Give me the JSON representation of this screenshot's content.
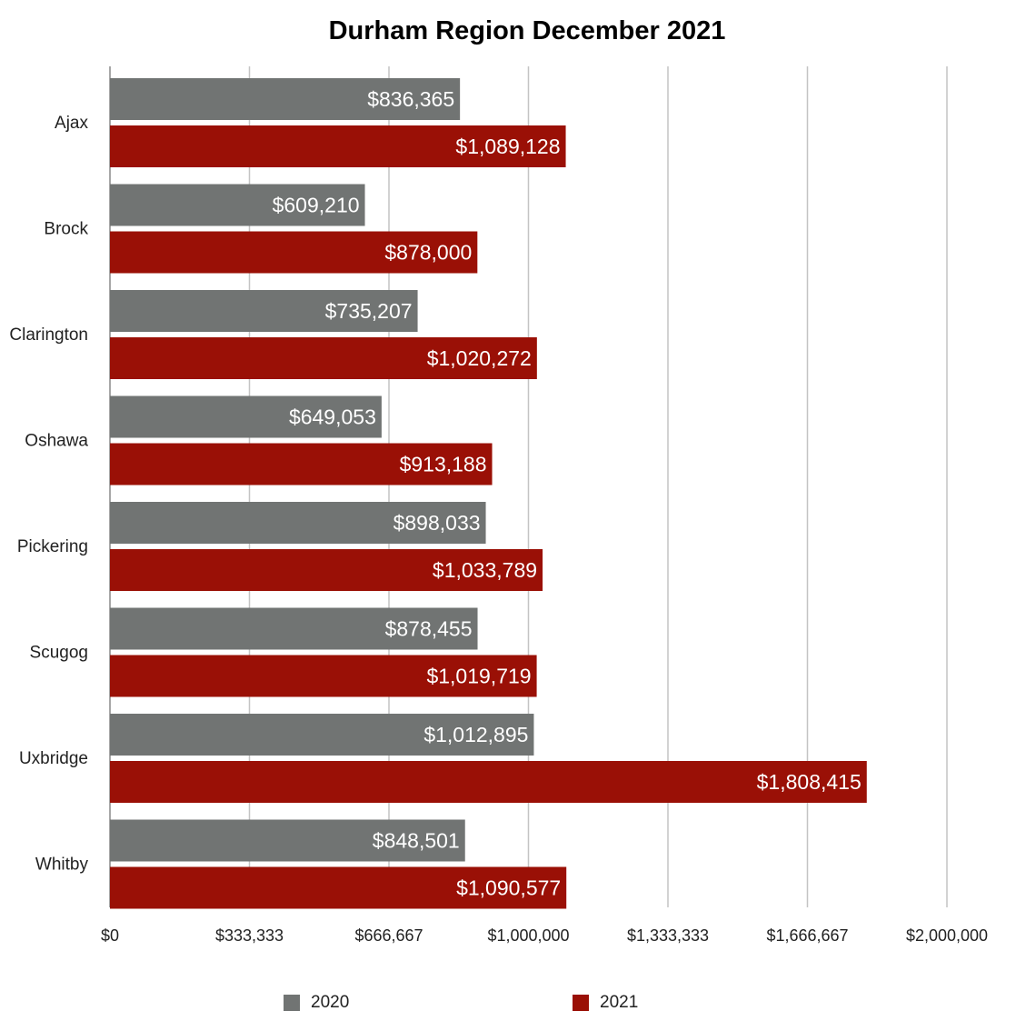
{
  "chart_data": {
    "type": "bar",
    "orientation": "horizontal",
    "title": "Durham Region December 2021",
    "categories": [
      "Ajax",
      "Brock",
      "Clarington",
      "Oshawa",
      "Pickering",
      "Scugog",
      "Uxbridge",
      "Whitby"
    ],
    "series": [
      {
        "name": "2020",
        "color": "#717473",
        "values": [
          836365,
          609210,
          735207,
          649053,
          898033,
          878455,
          1012895,
          848501
        ],
        "labels": [
          "$836,365",
          "$609,210",
          "$735,207",
          "$649,053",
          "$898,033",
          "$878,455",
          "$1,012,895",
          "$848,501"
        ]
      },
      {
        "name": "2021",
        "color": "#9a1006",
        "values": [
          1089128,
          878000,
          1020272,
          913188,
          1033789,
          1019719,
          1808415,
          1090577
        ],
        "labels": [
          "$1,089,128",
          "$878,000",
          "$1,020,272",
          "$913,188",
          "$1,033,789",
          "$1,019,719",
          "$1,808,415",
          "$1,090,577"
        ]
      }
    ],
    "xlim": [
      0,
      2000000
    ],
    "xticks": [
      0,
      333333,
      666667,
      1000000,
      1333333,
      1666667,
      2000000
    ],
    "xtick_labels": [
      "$0",
      "$333,333",
      "$666,667",
      "$1,000,000",
      "$1,333,333",
      "$1,666,667",
      "$2,000,000"
    ],
    "xlabel": "",
    "ylabel": "",
    "grid": true,
    "legend_position": "bottom"
  }
}
